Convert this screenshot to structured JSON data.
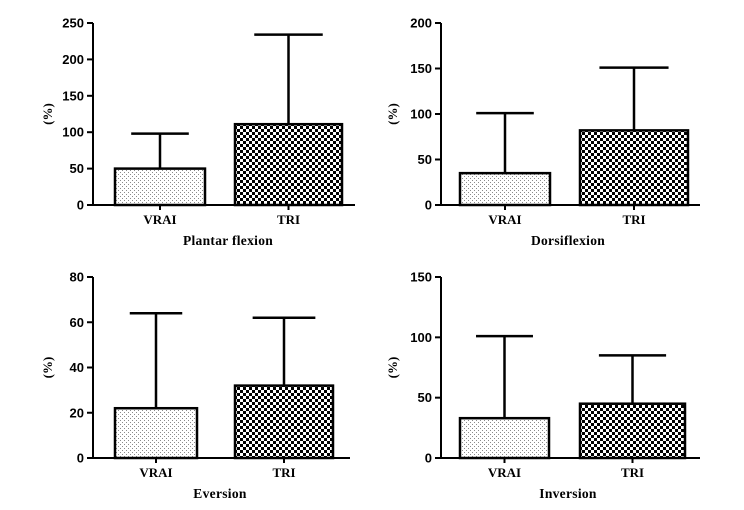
{
  "chart_data": [
    {
      "type": "bar",
      "title": "",
      "xlabel": "Plantar flexion",
      "ylabel": "(%)",
      "categories": [
        "VRAI",
        "TRI"
      ],
      "values": [
        50,
        111
      ],
      "error_upper": [
        98,
        234
      ],
      "ylim": [
        0,
        250
      ],
      "yticks": [
        0,
        50,
        100,
        150,
        200,
        250
      ],
      "patterns": [
        "dotted",
        "checkered"
      ]
    },
    {
      "type": "bar",
      "title": "",
      "xlabel": "Dorsiflexion",
      "ylabel": "(%)",
      "categories": [
        "VRAI",
        "TRI"
      ],
      "values": [
        35,
        82
      ],
      "error_upper": [
        101,
        151
      ],
      "ylim": [
        0,
        200
      ],
      "yticks": [
        0,
        50,
        100,
        150,
        200
      ],
      "patterns": [
        "dotted",
        "checkered"
      ]
    },
    {
      "type": "bar",
      "title": "",
      "xlabel": "Eversion",
      "ylabel": "(%)",
      "categories": [
        "VRAI",
        "TRI"
      ],
      "values": [
        22,
        32
      ],
      "error_upper": [
        64,
        62
      ],
      "ylim": [
        0,
        80
      ],
      "yticks": [
        0,
        20,
        40,
        60,
        80
      ],
      "patterns": [
        "dotted",
        "checkered"
      ]
    },
    {
      "type": "bar",
      "title": "",
      "xlabel": "Inversion",
      "ylabel": "(%)",
      "categories": [
        "VRAI",
        "TRI"
      ],
      "values": [
        33,
        45
      ],
      "error_upper": [
        101,
        85
      ],
      "ylim": [
        0,
        150
      ],
      "yticks": [
        0,
        50,
        100,
        150
      ],
      "patterns": [
        "dotted",
        "checkered"
      ]
    }
  ]
}
